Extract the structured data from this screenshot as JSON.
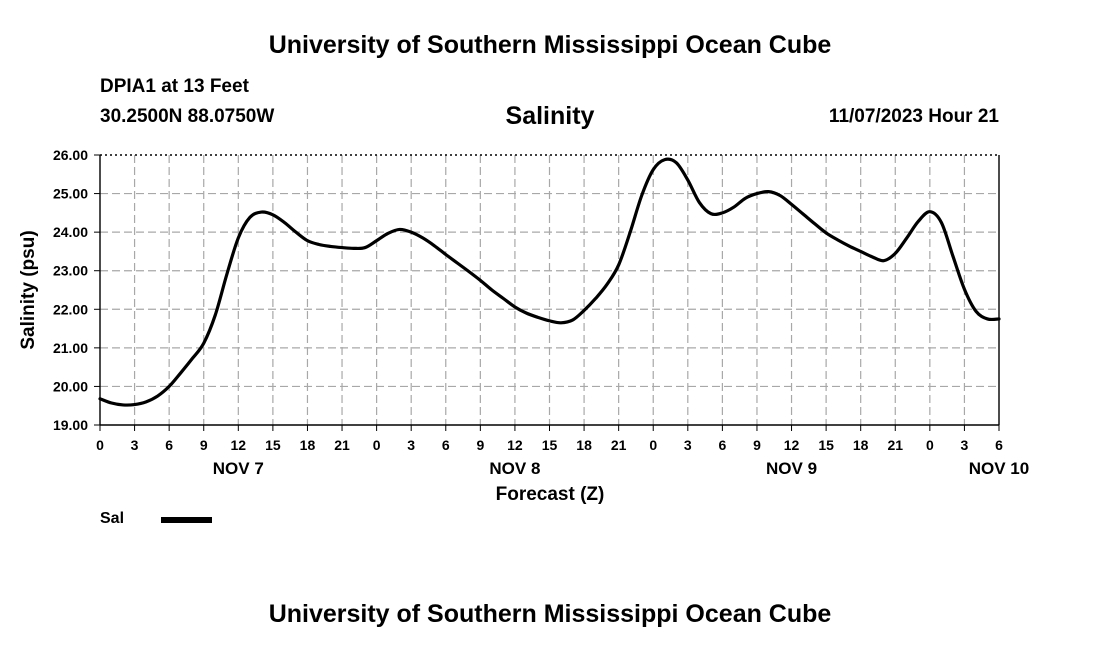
{
  "chart_data": {
    "type": "line",
    "title": "University of Southern Mississippi Ocean Cube",
    "footer_title": "University of Southern Mississippi Ocean Cube",
    "station": "DPIA1 at 13 Feet",
    "coordinates": "30.2500N  88.0750W",
    "variable": "Salinity",
    "datetime": "11/07/2023 Hour 21",
    "xlabel": "Forecast (Z)",
    "ylabel": "Salinity (psu)",
    "ylim": [
      19.0,
      26.0
    ],
    "xlim": [
      0,
      78
    ],
    "y_ticks": [
      "19.00",
      "20.00",
      "21.00",
      "22.00",
      "23.00",
      "24.00",
      "25.00",
      "26.00"
    ],
    "x_tick_labels": [
      "0",
      "3",
      "6",
      "9",
      "12",
      "15",
      "18",
      "21",
      "0",
      "3",
      "6",
      "9",
      "12",
      "15",
      "18",
      "21",
      "0",
      "3",
      "6",
      "9",
      "12",
      "15",
      "18",
      "21",
      "0",
      "3",
      "6"
    ],
    "day_labels": [
      {
        "label": "NOV 7",
        "hour": 12
      },
      {
        "label": "NOV 8",
        "hour": 36
      },
      {
        "label": "NOV 9",
        "hour": 60
      },
      {
        "label": "NOV 10",
        "hour": 78
      }
    ],
    "grid": true,
    "legend_position": "bottom-left",
    "series": [
      {
        "name": "Sal",
        "color": "#000000",
        "x": [
          0,
          1,
          2,
          3,
          4,
          5,
          6,
          7,
          8,
          9,
          10,
          11,
          12,
          13,
          14,
          15,
          16,
          17,
          18,
          19,
          20,
          21,
          22,
          23,
          24,
          25,
          26,
          27,
          28,
          29,
          30,
          31,
          32,
          33,
          34,
          35,
          36,
          37,
          38,
          39,
          40,
          41,
          42,
          43,
          44,
          45,
          46,
          47,
          48,
          49,
          50,
          51,
          52,
          53,
          54,
          55,
          56,
          57,
          58,
          59,
          60,
          61,
          62,
          63,
          64,
          65,
          66,
          67,
          68,
          69,
          70,
          71,
          72,
          73,
          74,
          75,
          76,
          77,
          78
        ],
        "values": [
          19.68,
          19.57,
          19.52,
          19.53,
          19.6,
          19.75,
          20.0,
          20.35,
          20.72,
          21.12,
          21.85,
          22.9,
          23.85,
          24.38,
          24.52,
          24.45,
          24.25,
          24.0,
          23.78,
          23.68,
          23.63,
          23.6,
          23.58,
          23.6,
          23.78,
          23.97,
          24.07,
          24.0,
          23.85,
          23.65,
          23.42,
          23.2,
          22.98,
          22.75,
          22.5,
          22.28,
          22.06,
          21.9,
          21.79,
          21.7,
          21.65,
          21.72,
          21.97,
          22.28,
          22.65,
          23.15,
          24.0,
          24.95,
          25.62,
          25.88,
          25.8,
          25.35,
          24.77,
          24.48,
          24.5,
          24.65,
          24.88,
          25.0,
          25.05,
          24.95,
          24.72,
          24.47,
          24.22,
          23.98,
          23.8,
          23.64,
          23.5,
          23.36,
          23.26,
          23.45,
          23.85,
          24.28,
          24.53,
          24.25,
          23.38,
          22.52,
          21.95,
          21.75,
          21.75
        ]
      }
    ]
  },
  "legend": {
    "label": "Sal"
  }
}
